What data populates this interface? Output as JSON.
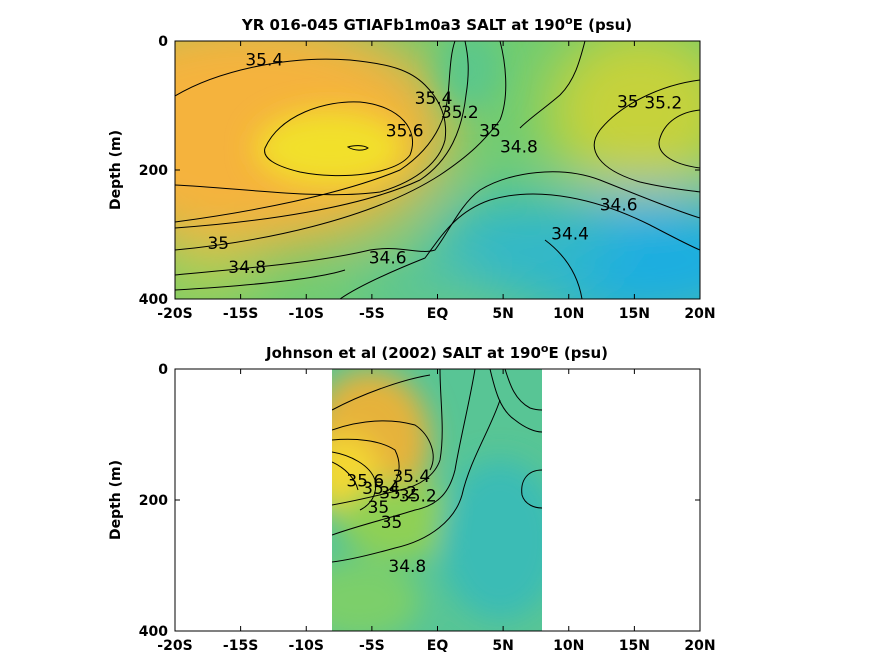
{
  "chart_data": [
    {
      "type": "heatmap",
      "title": "YR 016-045 GTIAFb1m0a3 SALT at 190",
      "title_sup": "o",
      "title_suffix": "E (psu)",
      "xlabel": "",
      "ylabel": "Depth (m)",
      "x_ticks": [
        "-20S",
        "-15S",
        "-10S",
        "-5S",
        "EQ",
        "5N",
        "10N",
        "15N",
        "20N"
      ],
      "y_ticks": [
        "0",
        "200",
        "400"
      ],
      "xlim": [
        -20,
        20
      ],
      "ylim": [
        400,
        0
      ],
      "colors": {
        "low": "#1aa8e0",
        "mid": "#7ccf6a",
        "high": "#f2e42a",
        "max": "#f5a84a"
      },
      "contour_labels": [
        {
          "text": "35.4",
          "x": -13.2,
          "y": 30
        },
        {
          "text": "35.4",
          "x": -0.3,
          "y": 90
        },
        {
          "text": "35.6",
          "x": -2.5,
          "y": 140
        },
        {
          "text": "35.2",
          "x": 1.7,
          "y": 112
        },
        {
          "text": "35",
          "x": 4,
          "y": 140
        },
        {
          "text": "34.8",
          "x": 6.2,
          "y": 165
        },
        {
          "text": "35",
          "x": 14.5,
          "y": 95
        },
        {
          "text": "35.2",
          "x": 17.2,
          "y": 97
        },
        {
          "text": "34.6",
          "x": 13.8,
          "y": 255
        },
        {
          "text": "34.4",
          "x": 10.1,
          "y": 300
        },
        {
          "text": "35",
          "x": -16.7,
          "y": 315
        },
        {
          "text": "34.8",
          "x": -14.5,
          "y": 352
        },
        {
          "text": "34.6",
          "x": -3.8,
          "y": 337
        }
      ]
    },
    {
      "type": "heatmap",
      "title": "Johnson et al (2002) SALT at 190",
      "title_sup": "o",
      "title_suffix": "E (psu)",
      "xlabel": "",
      "ylabel": "Depth (m)",
      "x_ticks": [
        "-20S",
        "-15S",
        "-10S",
        "-5S",
        "EQ",
        "5N",
        "10N",
        "15N",
        "20N"
      ],
      "y_ticks": [
        "0",
        "200",
        "400"
      ],
      "xlim": [
        -20,
        20
      ],
      "ylim": [
        400,
        0
      ],
      "data_extent_x": [
        -8,
        8
      ],
      "contour_labels": [
        {
          "text": "35.4",
          "x": -2,
          "y": 165
        },
        {
          "text": "35.6",
          "x": -5.5,
          "y": 172
        },
        {
          "text": "35.4",
          "x": -4.3,
          "y": 183
        },
        {
          "text": "35.2",
          "x": -3,
          "y": 190
        },
        {
          "text": "35",
          "x": -3.5,
          "y": 235
        },
        {
          "text": "35.2",
          "x": -1.5,
          "y": 195
        },
        {
          "text": "35",
          "x": -4.5,
          "y": 212
        },
        {
          "text": "34.8",
          "x": -2.3,
          "y": 302
        }
      ]
    }
  ]
}
